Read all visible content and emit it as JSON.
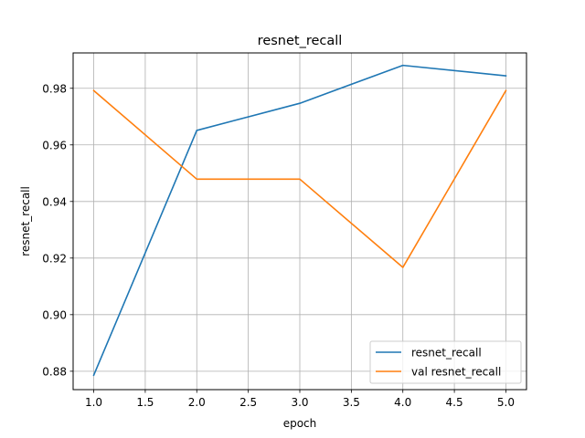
{
  "chart_data": {
    "type": "line",
    "title": "resnet_recall",
    "xlabel": "epoch",
    "ylabel": "resnet_recall",
    "x": [
      1,
      2,
      3,
      4,
      5
    ],
    "xlim": [
      0.8,
      5.2
    ],
    "ylim": [
      0.8735,
      0.9925
    ],
    "xticks": [
      "1.0",
      "1.5",
      "2.0",
      "2.5",
      "3.0",
      "3.5",
      "4.0",
      "4.5",
      "5.0"
    ],
    "yticks": [
      "0.88",
      "0.90",
      "0.92",
      "0.94",
      "0.96",
      "0.98"
    ],
    "grid": true,
    "legend_position": "lower-right",
    "series": [
      {
        "name": "resnet_recall",
        "color": "#1f77b4",
        "values": [
          0.8786,
          0.9651,
          0.9747,
          0.9881,
          0.9844
        ]
      },
      {
        "name": "val resnet_recall",
        "color": "#ff7f0e",
        "values": [
          0.9792,
          0.9479,
          0.9479,
          0.9167,
          0.9792
        ]
      }
    ]
  }
}
